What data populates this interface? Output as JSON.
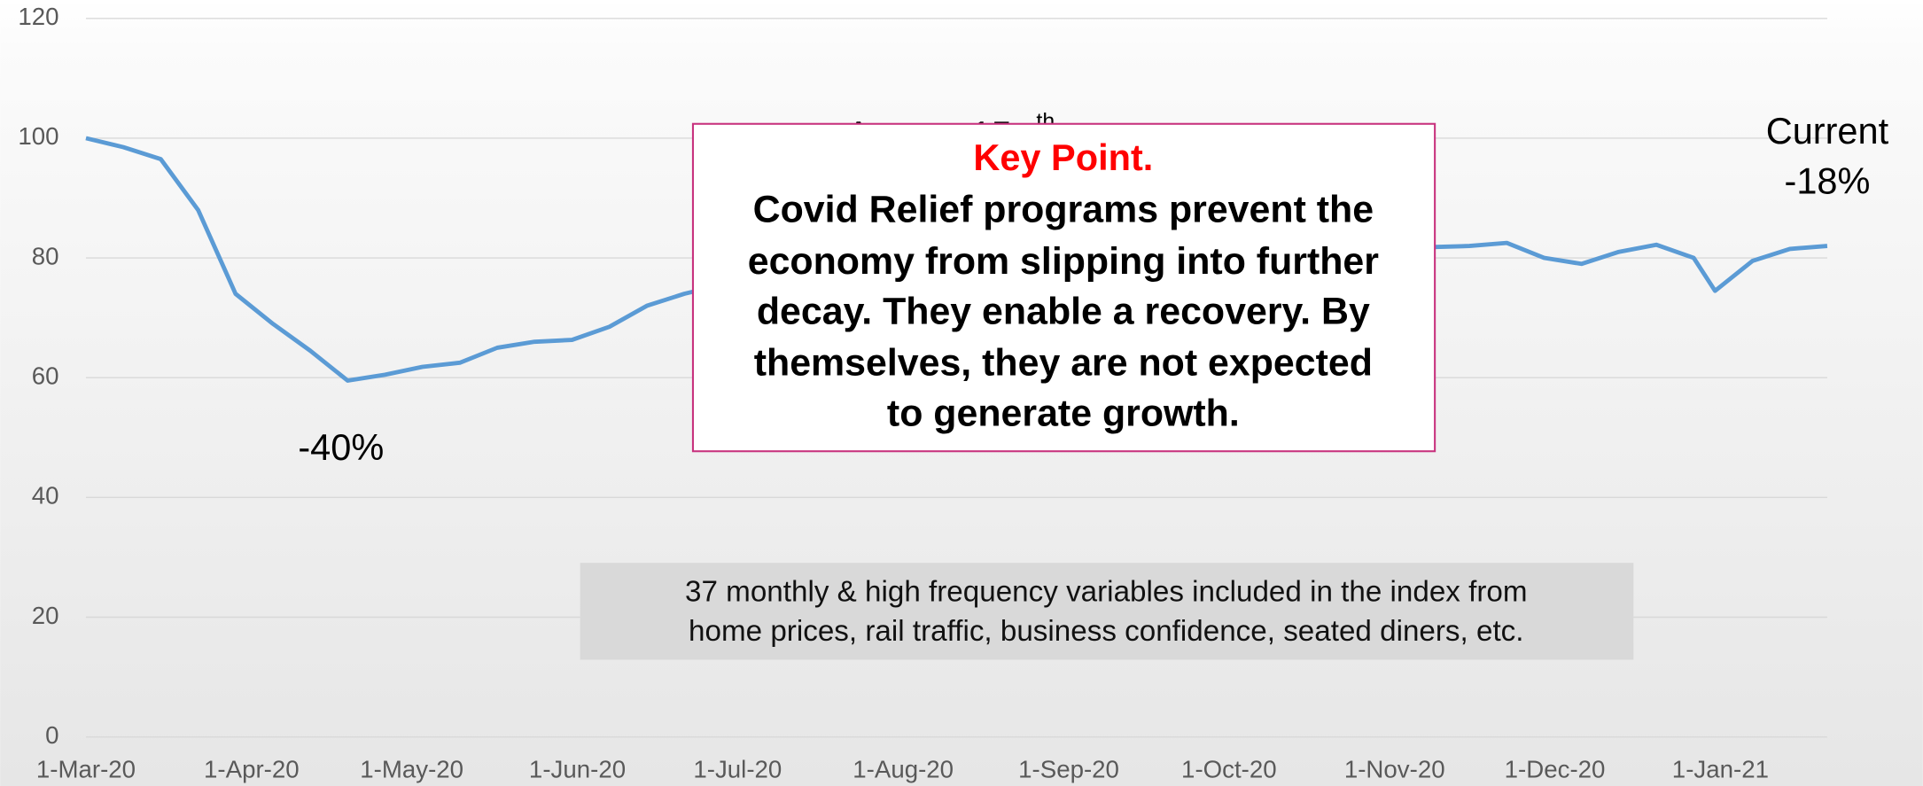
{
  "chart_data": {
    "type": "line",
    "x": [
      "2020-03-01",
      "2020-03-08",
      "2020-03-15",
      "2020-03-22",
      "2020-03-29",
      "2020-04-05",
      "2020-04-12",
      "2020-04-19",
      "2020-04-26",
      "2020-05-03",
      "2020-05-10",
      "2020-05-17",
      "2020-05-24",
      "2020-05-31",
      "2020-06-07",
      "2020-06-14",
      "2020-06-21",
      "2020-06-28",
      "2020-07-05",
      "2020-07-12",
      "2020-07-19",
      "2020-07-26",
      "2020-08-02",
      "2020-08-09",
      "2020-08-16",
      "2020-08-23",
      "2020-08-30",
      "2020-09-06",
      "2020-09-13",
      "2020-09-20",
      "2020-09-27",
      "2020-10-04",
      "2020-10-11",
      "2020-10-18",
      "2020-10-25",
      "2020-11-01",
      "2020-11-08",
      "2020-11-15",
      "2020-11-22",
      "2020-11-29",
      "2020-12-06",
      "2020-12-13",
      "2020-12-20",
      "2020-12-27",
      "2020-12-31",
      "2021-01-07",
      "2021-01-14",
      "2021-01-21"
    ],
    "series": [
      {
        "color": "#5b9bd5",
        "values": [
          100,
          98.5,
          96.5,
          88,
          74,
          69,
          64.5,
          59.5,
          60.5,
          61.8,
          62.5,
          65,
          66,
          66.3,
          68.5,
          72,
          74,
          75.5,
          76.5,
          77.5,
          78.5,
          79,
          79.5,
          80,
          80.5,
          80.5,
          81,
          81,
          81,
          81,
          81.5,
          81.5,
          81.5,
          81.5,
          81.5,
          81.5,
          81.8,
          82,
          82.5,
          80,
          79,
          81,
          82.2,
          80,
          74.5,
          79.5,
          81.5,
          82
        ]
      }
    ],
    "xlim": [
      "2020-03-01",
      "2021-01-21"
    ],
    "xticks": [
      {
        "value": "2020-03-01",
        "label": "1-Mar-20"
      },
      {
        "value": "2020-04-01",
        "label": "1-Apr-20"
      },
      {
        "value": "2020-05-01",
        "label": "1-May-20"
      },
      {
        "value": "2020-06-01",
        "label": "1-Jun-20"
      },
      {
        "value": "2020-07-01",
        "label": "1-Jul-20"
      },
      {
        "value": "2020-08-01",
        "label": "1-Aug-20"
      },
      {
        "value": "2020-09-01",
        "label": "1-Sep-20"
      },
      {
        "value": "2020-10-01",
        "label": "1-Oct-20"
      },
      {
        "value": "2020-11-01",
        "label": "1-Nov-20"
      },
      {
        "value": "2020-12-01",
        "label": "1-Dec-20"
      },
      {
        "value": "2021-01-01",
        "label": "1-Jan-21"
      }
    ],
    "ylim": [
      0,
      120
    ],
    "yticks": [
      0,
      20,
      40,
      60,
      80,
      100,
      120
    ],
    "grid": true,
    "annotations": {
      "trough": "-40%",
      "current": [
        "Current",
        "-18%"
      ],
      "august": {
        "text": "August 15",
        "sup": "th"
      },
      "key_point": {
        "title": "Key Point.",
        "lines": [
          "Covid Relief programs prevent the",
          "economy from slipping into further",
          "decay. They enable a recovery. By",
          "themselves, they are not expected",
          "to generate growth."
        ]
      },
      "note": [
        "37 monthly & high frequency variables included in the index from",
        "home prices, rail traffic, business confidence, seated diners, etc."
      ]
    }
  }
}
